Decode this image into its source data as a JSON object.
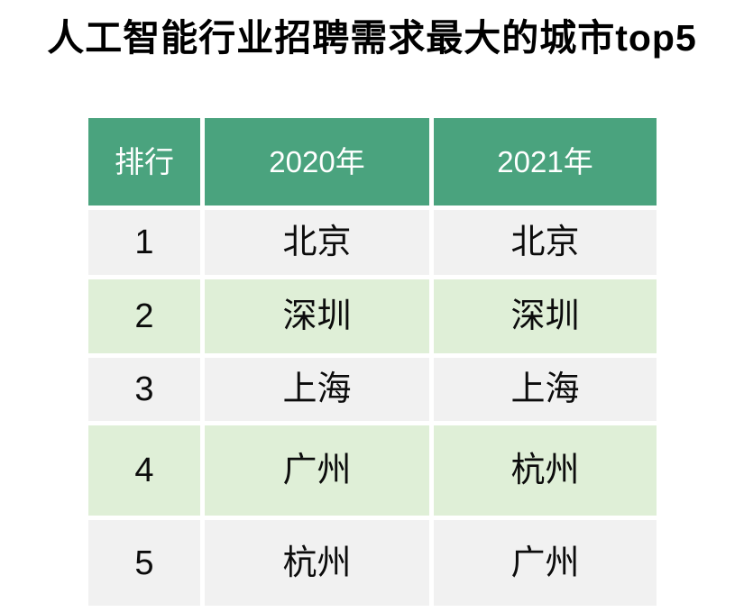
{
  "title": "人工智能行业招聘需求最大的城市top5",
  "colors": {
    "header_bg": "#4aa37e",
    "header_fg": "#ffffff",
    "row_gray": "#f1f1f1",
    "row_green": "#dfefd7",
    "title_color": "#000000"
  },
  "chart_data": {
    "type": "table",
    "title": "人工智能行业招聘需求最大的城市top5",
    "columns": [
      "排行",
      "2020年",
      "2021年"
    ],
    "rows": [
      [
        "1",
        "北京",
        "北京"
      ],
      [
        "2",
        "深圳",
        "深圳"
      ],
      [
        "3",
        "上海",
        "上海"
      ],
      [
        "4",
        "广州",
        "杭州"
      ],
      [
        "5",
        "杭州",
        "广州"
      ]
    ],
    "legend_position": "none",
    "grid": false
  }
}
